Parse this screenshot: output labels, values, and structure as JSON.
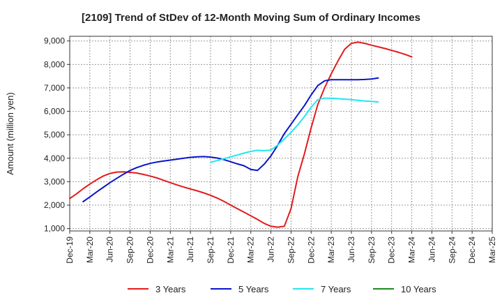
{
  "chart_data": {
    "type": "line",
    "title": "[2109]  Trend of StDev of 12-Month Moving Sum of Ordinary Incomes",
    "ylabel": "Amount (million yen)",
    "xlabel": "",
    "x_ticks": [
      "Dec-19",
      "Mar-20",
      "Jun-20",
      "Sep-20",
      "Dec-20",
      "Mar-21",
      "Jun-21",
      "Sep-21",
      "Dec-21",
      "Mar-22",
      "Jun-22",
      "Sep-22",
      "Dec-22",
      "Mar-23",
      "Jun-23",
      "Sep-23",
      "Dec-23",
      "Mar-24",
      "Jun-24",
      "Sep-24",
      "Dec-24",
      "Mar-25"
    ],
    "y_ticks": [
      "1,000",
      "2,000",
      "3,000",
      "4,000",
      "5,000",
      "6,000",
      "7,000",
      "8,000",
      "9,000"
    ],
    "ylim": [
      900,
      9200
    ],
    "grid": true,
    "legend_position": "bottom",
    "series": [
      {
        "name": "3 Years",
        "color": "#e31a1c",
        "points": [
          [
            0,
            2280
          ],
          [
            1,
            2480
          ],
          [
            2,
            2700
          ],
          [
            3,
            2900
          ],
          [
            4,
            3080
          ],
          [
            5,
            3240
          ],
          [
            6,
            3350
          ],
          [
            7,
            3410
          ],
          [
            8,
            3420
          ],
          [
            9,
            3400
          ],
          [
            10,
            3370
          ],
          [
            11,
            3310
          ],
          [
            12,
            3240
          ],
          [
            13,
            3160
          ],
          [
            14,
            3060
          ],
          [
            15,
            2960
          ],
          [
            16,
            2860
          ],
          [
            17,
            2770
          ],
          [
            18,
            2690
          ],
          [
            19,
            2610
          ],
          [
            20,
            2520
          ],
          [
            21,
            2420
          ],
          [
            22,
            2300
          ],
          [
            23,
            2160
          ],
          [
            24,
            2000
          ],
          [
            25,
            1850
          ],
          [
            26,
            1700
          ],
          [
            27,
            1550
          ],
          [
            28,
            1390
          ],
          [
            29,
            1220
          ],
          [
            30,
            1100
          ],
          [
            31,
            1060
          ],
          [
            32,
            1100
          ],
          [
            33,
            1850
          ],
          [
            34,
            3200
          ],
          [
            35,
            4200
          ],
          [
            36,
            5300
          ],
          [
            37,
            6300
          ],
          [
            38,
            7000
          ],
          [
            39,
            7600
          ],
          [
            40,
            8150
          ],
          [
            41,
            8650
          ],
          [
            42,
            8900
          ],
          [
            43,
            8950
          ],
          [
            44,
            8900
          ],
          [
            45,
            8820
          ],
          [
            46,
            8750
          ],
          [
            47,
            8680
          ],
          [
            48,
            8600
          ],
          [
            49,
            8520
          ],
          [
            50,
            8430
          ],
          [
            51,
            8320
          ]
        ]
      },
      {
        "name": "5 Years",
        "color": "#0a14c8",
        "points": [
          [
            2,
            2150
          ],
          [
            3,
            2350
          ],
          [
            4,
            2560
          ],
          [
            5,
            2760
          ],
          [
            6,
            2960
          ],
          [
            7,
            3140
          ],
          [
            8,
            3320
          ],
          [
            9,
            3480
          ],
          [
            10,
            3600
          ],
          [
            11,
            3700
          ],
          [
            12,
            3780
          ],
          [
            13,
            3840
          ],
          [
            14,
            3880
          ],
          [
            15,
            3920
          ],
          [
            16,
            3960
          ],
          [
            17,
            4000
          ],
          [
            18,
            4040
          ],
          [
            19,
            4060
          ],
          [
            20,
            4070
          ],
          [
            21,
            4050
          ],
          [
            22,
            4010
          ],
          [
            23,
            3940
          ],
          [
            24,
            3850
          ],
          [
            25,
            3760
          ],
          [
            26,
            3680
          ],
          [
            27,
            3520
          ],
          [
            28,
            3480
          ],
          [
            29,
            3750
          ],
          [
            30,
            4100
          ],
          [
            31,
            4550
          ],
          [
            32,
            5050
          ],
          [
            33,
            5450
          ],
          [
            34,
            5850
          ],
          [
            35,
            6250
          ],
          [
            36,
            6700
          ],
          [
            37,
            7100
          ],
          [
            38,
            7300
          ],
          [
            39,
            7350
          ],
          [
            40,
            7350
          ],
          [
            41,
            7350
          ],
          [
            42,
            7350
          ],
          [
            43,
            7350
          ],
          [
            44,
            7360
          ],
          [
            45,
            7380
          ],
          [
            46,
            7420
          ]
        ]
      },
      {
        "name": "7 Years",
        "color": "#22e6f0",
        "points": [
          [
            21,
            3830
          ],
          [
            22,
            3900
          ],
          [
            23,
            3980
          ],
          [
            24,
            4060
          ],
          [
            25,
            4140
          ],
          [
            26,
            4220
          ],
          [
            27,
            4290
          ],
          [
            28,
            4340
          ],
          [
            29,
            4320
          ],
          [
            30,
            4350
          ],
          [
            31,
            4560
          ],
          [
            32,
            4820
          ],
          [
            33,
            5100
          ],
          [
            34,
            5420
          ],
          [
            35,
            5780
          ],
          [
            36,
            6180
          ],
          [
            37,
            6500
          ],
          [
            38,
            6560
          ],
          [
            39,
            6560
          ],
          [
            40,
            6540
          ],
          [
            41,
            6520
          ],
          [
            42,
            6500
          ],
          [
            43,
            6470
          ],
          [
            44,
            6440
          ],
          [
            45,
            6420
          ],
          [
            46,
            6400
          ]
        ]
      },
      {
        "name": "10 Years",
        "color": "#1a8c1a",
        "points": []
      }
    ]
  }
}
